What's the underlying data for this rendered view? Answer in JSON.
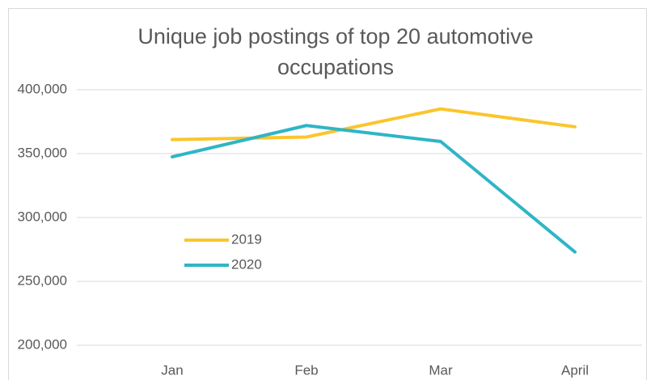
{
  "chart_data": {
    "type": "line",
    "title": "Unique job postings of top 20 automotive occupations",
    "categories": [
      "Jan",
      "Feb",
      "Mar",
      "April"
    ],
    "series": [
      {
        "name": "2019",
        "color": "#fbc52c",
        "values": [
          361000,
          363000,
          385000,
          371000
        ]
      },
      {
        "name": "2020",
        "color": "#2fb5c6",
        "values": [
          347500,
          372000,
          359500,
          273000
        ]
      }
    ],
    "ylim": [
      200000,
      400000
    ],
    "yticks": [
      {
        "value": 200000,
        "label": "200,000"
      },
      {
        "value": 250000,
        "label": "250,000"
      },
      {
        "value": 300000,
        "label": "300,000"
      },
      {
        "value": 350000,
        "label": "350,000"
      },
      {
        "value": 400000,
        "label": "400,000"
      }
    ],
    "grid": true
  }
}
